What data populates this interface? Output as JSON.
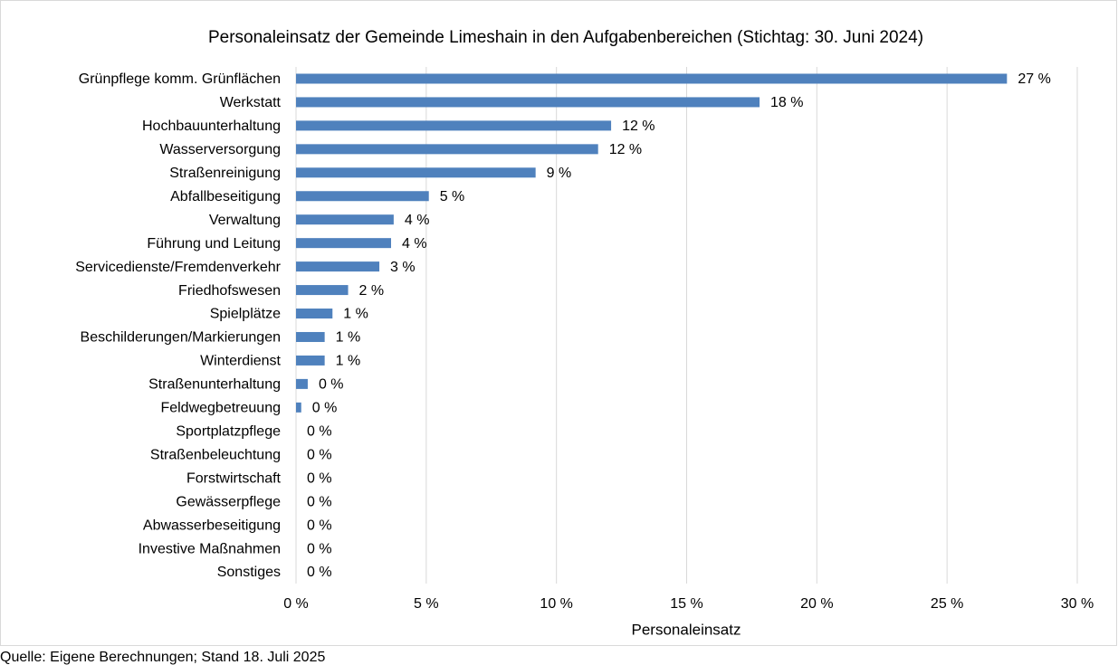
{
  "chart_data": {
    "type": "hbar",
    "title": "Personaleinsatz der Gemeinde Limeshain in den Aufgabenbereichen (Stichtag: 30. Juni 2024)",
    "x_label": "Personaleinsatz",
    "source": "Quelle: Eigene Berechnungen; Stand 18. Juli 2025",
    "color": "#4f81bd",
    "grid": true,
    "categories": [
      "Grünpflege komm. Grünflächen",
      "Werkstatt",
      "Hochbauunterhaltung",
      "Wasserversorgung",
      "Straßenreinigung",
      "Abfallbeseitigung",
      "Verwaltung",
      "Führung und Leitung",
      "Servicedienste/Fremdenverkehr",
      "Friedhofswesen",
      "Spielplätze",
      "Beschilderungen/Markierungen",
      "Winterdienst",
      "Straßenunterhaltung",
      "Feldwegbetreuung",
      "Sportplatzpflege",
      "Straßenbeleuchtung",
      "Forstwirtschaft",
      "Gewässerpflege",
      "Abwasserbeseitigung",
      "Investive Maßnahmen",
      "Sonstiges"
    ],
    "values": [
      27.3,
      17.8,
      12.1,
      11.6,
      9.2,
      5.1,
      3.75,
      3.65,
      3.2,
      2.0,
      1.4,
      1.1,
      1.1,
      0.45,
      0.2,
      0,
      0,
      0,
      0,
      0,
      0,
      0
    ],
    "value_labels": [
      "27 %",
      "18 %",
      "12 %",
      "12 %",
      "9 %",
      "5 %",
      "4 %",
      "4 %",
      "3 %",
      "2 %",
      "1 %",
      "1 %",
      "1 %",
      "0 %",
      "0 %",
      "0 %",
      "0 %",
      "0 %",
      "0 %",
      "0 %",
      "0 %",
      "0 %"
    ],
    "xlim": [
      0,
      30
    ],
    "xticks": [
      {
        "value": 0,
        "label": "0 %"
      },
      {
        "value": 5,
        "label": "5 %"
      },
      {
        "value": 10,
        "label": "10 %"
      },
      {
        "value": 15,
        "label": "15 %"
      },
      {
        "value": 20,
        "label": "20 %"
      },
      {
        "value": 25,
        "label": "25 %"
      },
      {
        "value": 30,
        "label": "30 %"
      }
    ]
  }
}
